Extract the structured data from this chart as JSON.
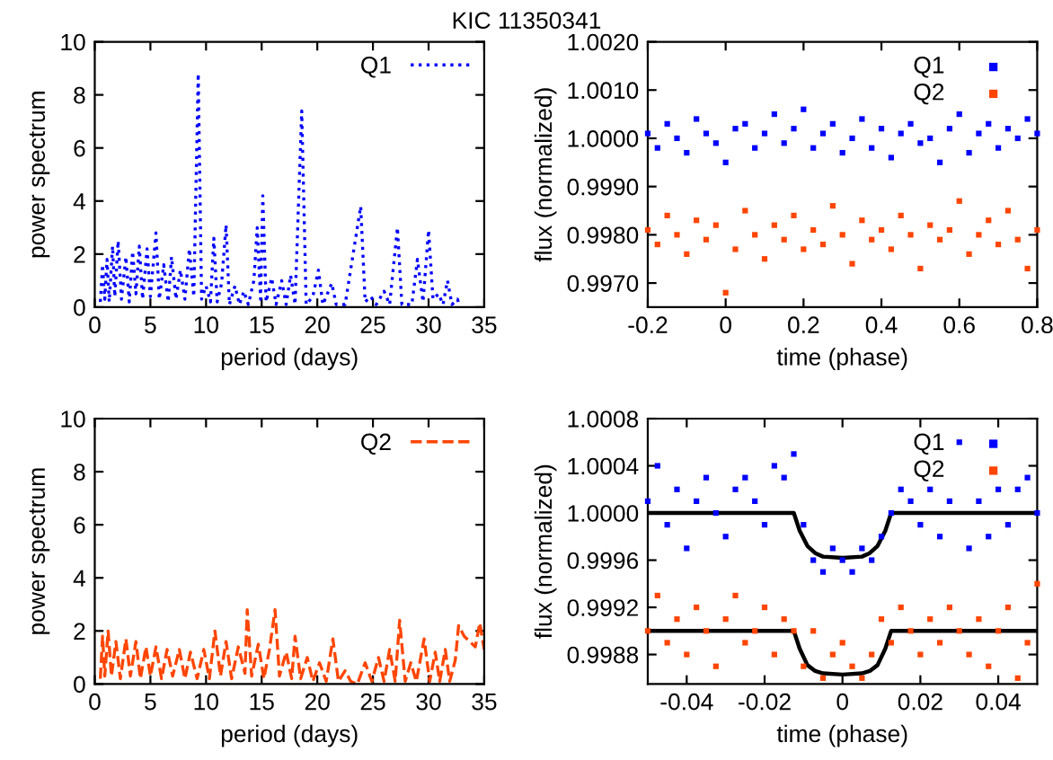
{
  "chart_data": [
    {
      "type": "line",
      "title": "KIC 11350341",
      "xlabel": "period (days)",
      "ylabel": "power spectrum",
      "xlim": [
        0,
        35
      ],
      "ylim": [
        0,
        10
      ],
      "xticks": [
        0,
        5,
        10,
        15,
        20,
        25,
        30,
        35
      ],
      "yticks": [
        0,
        2,
        4,
        6,
        8,
        10
      ],
      "legend": "top right",
      "line_style": "dotted",
      "grid": false,
      "series": [
        {
          "name": "Q1",
          "color": "#0000ff",
          "x": [
            0.5,
            0.7,
            0.9,
            1.1,
            1.3,
            1.6,
            1.8,
            2.1,
            2.4,
            2.8,
            3.1,
            3.4,
            3.7,
            4.0,
            4.3,
            4.7,
            5.0,
            5.5,
            5.8,
            6.2,
            6.6,
            6.9,
            7.3,
            7.7,
            8.1,
            8.5,
            8.9,
            9.3,
            9.6,
            10.0,
            10.4,
            10.7,
            11.0,
            11.4,
            11.8,
            12.1,
            12.6,
            13.0,
            13.4,
            13.8,
            14.3,
            14.6,
            14.9,
            15.1,
            15.4,
            15.9,
            16.3,
            16.8,
            17.2,
            17.6,
            18.0,
            18.6,
            19.0,
            19.6,
            20.1,
            20.5,
            21.3,
            21.7,
            22.5,
            23.9,
            24.3,
            24.8,
            25.3,
            26.0,
            26.5,
            27.2,
            27.6,
            28.5,
            29.0,
            29.5,
            30.0,
            30.4,
            30.9,
            31.3,
            31.7,
            32.1,
            32.6,
            32.8
          ],
          "values": [
            0.2,
            1.6,
            0.3,
            1.8,
            0.2,
            2.3,
            0.4,
            2.5,
            0.3,
            1.9,
            0.2,
            2.1,
            0.5,
            2.3,
            0.3,
            2.2,
            0.4,
            2.8,
            0.3,
            1.6,
            0.2,
            1.9,
            0.3,
            1.4,
            0.3,
            2.2,
            0.4,
            8.8,
            0.3,
            0.8,
            0.2,
            2.6,
            0.2,
            0.9,
            3.1,
            0.1,
            0.8,
            0.1,
            0.6,
            0.1,
            1.0,
            3.0,
            0.3,
            4.2,
            0.2,
            1.1,
            0.1,
            1.0,
            0.1,
            1.2,
            0.1,
            7.4,
            0.1,
            0.4,
            1.4,
            0.1,
            0.9,
            0.1,
            0.1,
            3.8,
            0.2,
            0.4,
            0.1,
            0.6,
            0.1,
            3.0,
            0.1,
            0.1,
            1.8,
            0.2,
            2.9,
            0.3,
            0.5,
            0.1,
            1.0,
            0.1,
            0.3,
            0
          ]
        }
      ]
    },
    {
      "type": "scatter",
      "xlabel": "time (phase)",
      "ylabel": "flux (normalized)",
      "xlim": [
        -0.2,
        0.8
      ],
      "ylim": [
        0.9965,
        1.002
      ],
      "xticks": [
        -0.2,
        0,
        0.2,
        0.4,
        0.6,
        0.8
      ],
      "yticks": [
        {
          "value": 0.997,
          "label": "0.9970"
        },
        {
          "value": 0.998,
          "label": "0.9980"
        },
        {
          "value": 0.999,
          "label": "0.9990"
        },
        {
          "value": 1.0,
          "label": "1.0000"
        },
        {
          "value": 1.001,
          "label": "1.0010"
        },
        {
          "value": 1.002,
          "label": "1.0020"
        }
      ],
      "legend": "top right",
      "marker": "square",
      "grid": false,
      "series": [
        {
          "name": "Q1",
          "color": "#0000ff",
          "x": [
            -0.2,
            -0.175,
            -0.15,
            -0.125,
            -0.1,
            -0.075,
            -0.05,
            -0.025,
            0,
            0.025,
            0.05,
            0.075,
            0.1,
            0.125,
            0.15,
            0.175,
            0.2,
            0.225,
            0.25,
            0.275,
            0.3,
            0.325,
            0.35,
            0.375,
            0.4,
            0.425,
            0.45,
            0.475,
            0.5,
            0.525,
            0.55,
            0.575,
            0.6,
            0.625,
            0.65,
            0.675,
            0.7,
            0.725,
            0.75,
            0.775,
            0.8
          ],
          "values": [
            1.0001,
            0.9998,
            1.0003,
            1.0,
            0.9997,
            1.0004,
            1.0001,
            0.9999,
            0.9995,
            1.0002,
            1.0003,
            0.9998,
            1.0001,
            1.0005,
            0.9999,
            1.0002,
            1.0006,
            0.9998,
            1.0001,
            1.0003,
            0.9997,
            1.0,
            1.0004,
            0.9998,
            1.0002,
            0.9996,
            1.0001,
            1.0003,
            0.9999,
            1.0,
            0.9995,
            1.0002,
            1.0005,
            0.9997,
            1.0001,
            1.0003,
            0.9998,
            1.0002,
            1.0,
            1.0004,
            1.0001
          ]
        },
        {
          "name": "Q2",
          "color": "#ff4500",
          "x": [
            -0.2,
            -0.175,
            -0.15,
            -0.125,
            -0.1,
            -0.075,
            -0.05,
            -0.025,
            0,
            0.025,
            0.05,
            0.075,
            0.1,
            0.125,
            0.15,
            0.175,
            0.2,
            0.225,
            0.25,
            0.275,
            0.3,
            0.325,
            0.35,
            0.375,
            0.4,
            0.425,
            0.45,
            0.475,
            0.5,
            0.525,
            0.55,
            0.575,
            0.6,
            0.625,
            0.65,
            0.675,
            0.7,
            0.725,
            0.75,
            0.775,
            0.8
          ],
          "values": [
            0.9981,
            0.9978,
            0.9984,
            0.998,
            0.9976,
            0.9983,
            0.9979,
            0.9982,
            0.9968,
            0.9977,
            0.9985,
            0.998,
            0.9975,
            0.9982,
            0.9979,
            0.9984,
            0.9977,
            0.9981,
            0.9978,
            0.9986,
            0.998,
            0.9974,
            0.9983,
            0.9979,
            0.9981,
            0.9977,
            0.9984,
            0.998,
            0.9973,
            0.9982,
            0.9979,
            0.9981,
            0.9987,
            0.9976,
            0.998,
            0.9983,
            0.9978,
            0.9985,
            0.9979,
            0.9973,
            0.9981
          ]
        }
      ]
    },
    {
      "type": "line",
      "xlabel": "period (days)",
      "ylabel": "power spectrum",
      "xlim": [
        0,
        35
      ],
      "ylim": [
        0,
        10
      ],
      "xticks": [
        0,
        5,
        10,
        15,
        20,
        25,
        30,
        35
      ],
      "yticks": [
        0,
        2,
        4,
        6,
        8,
        10
      ],
      "legend": "top right",
      "line_style": "dashed",
      "grid": false,
      "series": [
        {
          "name": "Q2",
          "color": "#ff4500",
          "x": [
            0.5,
            0.7,
            0.9,
            1.2,
            1.5,
            1.9,
            2.3,
            2.8,
            3.2,
            3.7,
            4.1,
            4.6,
            5.0,
            5.5,
            6.0,
            6.5,
            7.0,
            7.6,
            8.1,
            8.6,
            9.2,
            9.8,
            10.3,
            10.8,
            11.3,
            11.8,
            12.3,
            12.9,
            13.5,
            13.7,
            14.1,
            14.7,
            15.2,
            15.7,
            16.2,
            16.6,
            17.2,
            17.7,
            18.0,
            18.5,
            19.1,
            19.6,
            20.2,
            20.8,
            21.4,
            21.9,
            22.5,
            23.0,
            23.6,
            24.3,
            24.9,
            25.5,
            26.0,
            26.5,
            27.0,
            27.4,
            27.9,
            28.4,
            28.9,
            29.6,
            30.1,
            30.6,
            31.0,
            31.5,
            31.9,
            32.4,
            32.7,
            33.2,
            33.7,
            34.2,
            34.6,
            35.0
          ],
          "values": [
            0.2,
            1.8,
            0.3,
            2.0,
            0.3,
            1.6,
            0.2,
            1.7,
            0.3,
            1.6,
            0.2,
            1.4,
            0.3,
            1.4,
            0.2,
            1.3,
            0.3,
            1.3,
            0.2,
            1.2,
            0.2,
            1.3,
            0.2,
            2.0,
            0.3,
            1.6,
            0.2,
            1.4,
            0.4,
            2.8,
            0.3,
            1.5,
            0.2,
            1.3,
            2.8,
            0.3,
            1.2,
            0.2,
            1.8,
            0.2,
            1.0,
            0.1,
            0.8,
            0.1,
            1.7,
            0.1,
            0.5,
            0.1,
            0,
            0.8,
            0.1,
            1.0,
            0.1,
            1.3,
            0.1,
            2.4,
            0.1,
            0.8,
            0.1,
            1.7,
            0.1,
            1.2,
            0.1,
            1.3,
            0.1,
            0.9,
            2.2,
            1.8,
            1.6,
            1.4,
            2.3,
            1.3
          ]
        }
      ]
    },
    {
      "type": "scatter",
      "xlabel": "time (phase)",
      "ylabel": "flux (normalized)",
      "xlim": [
        -0.05,
        0.05
      ],
      "ylim": [
        0.99855,
        1.0008
      ],
      "xticks": [
        -0.04,
        -0.02,
        0,
        0.02,
        0.04
      ],
      "yticks": [
        {
          "value": 0.9988,
          "label": "0.9988"
        },
        {
          "value": 0.9992,
          "label": "0.9992"
        },
        {
          "value": 0.9996,
          "label": "0.9996"
        },
        {
          "value": 1.0,
          "label": "1.0000"
        },
        {
          "value": 1.0004,
          "label": "1.0004"
        },
        {
          "value": 1.0008,
          "label": "1.0008"
        }
      ],
      "legend": "top right",
      "marker": "square",
      "grid": false,
      "series": [
        {
          "name": "Q1",
          "color": "#0000ff",
          "x": [
            -0.05,
            -0.0475,
            -0.045,
            -0.0425,
            -0.04,
            -0.0375,
            -0.035,
            -0.0325,
            -0.03,
            -0.0275,
            -0.025,
            -0.0225,
            -0.02,
            -0.0175,
            -0.015,
            -0.0125,
            -0.01,
            -0.0075,
            -0.005,
            -0.0025,
            0,
            0.0025,
            0.005,
            0.0075,
            0.01,
            0.0125,
            0.015,
            0.0175,
            0.02,
            0.0225,
            0.025,
            0.0275,
            0.03,
            0.0325,
            0.035,
            0.0375,
            0.04,
            0.0425,
            0.045,
            0.0475,
            0.05
          ],
          "values": [
            1.0001,
            1.0004,
            0.9999,
            1.0002,
            0.9997,
            1.0001,
            1.0003,
            1.0,
            0.9998,
            1.0002,
            1.0003,
            1.0001,
            0.9999,
            1.0004,
            1.0003,
            1.0005,
            0.9999,
            0.9996,
            0.9995,
            0.9997,
            0.9996,
            0.9995,
            0.9997,
            0.9996,
            0.9998,
            1.0,
            1.0002,
            1.0001,
            0.9999,
            1.0002,
            0.9998,
            1.0001,
            1.0006,
            0.9997,
            1.0001,
            0.9998,
            1.0002,
            0.9999,
            1.0002,
            1.0003,
            1.0
          ]
        },
        {
          "name": "Q2",
          "color": "#ff4500",
          "x": [
            -0.05,
            -0.0475,
            -0.045,
            -0.0425,
            -0.04,
            -0.0375,
            -0.035,
            -0.0325,
            -0.03,
            -0.0275,
            -0.025,
            -0.0225,
            -0.02,
            -0.0175,
            -0.015,
            -0.0125,
            -0.01,
            -0.0075,
            -0.005,
            -0.0025,
            0,
            0.0025,
            0.005,
            0.0075,
            0.01,
            0.0125,
            0.015,
            0.0175,
            0.02,
            0.0225,
            0.025,
            0.0275,
            0.03,
            0.0325,
            0.035,
            0.0375,
            0.04,
            0.0425,
            0.045,
            0.0475,
            0.05
          ],
          "values": [
            0.999,
            0.9993,
            0.9989,
            0.9991,
            0.9988,
            0.9992,
            0.999,
            0.9987,
            0.9991,
            0.9993,
            0.9989,
            0.999,
            0.9992,
            0.9988,
            0.9991,
            0.999,
            0.9987,
            0.999,
            0.9986,
            0.9988,
            0.9989,
            0.9987,
            0.9986,
            0.9988,
            0.9991,
            0.9989,
            0.9992,
            0.999,
            0.9988,
            0.9991,
            0.9989,
            0.9992,
            0.999,
            0.9988,
            0.9991,
            0.9987,
            0.999,
            0.9992,
            0.9986,
            0.9989,
            0.9994
          ]
        },
        {
          "type": "line",
          "marker": "none",
          "color": "#000000",
          "x": [
            -0.05,
            -0.0125,
            -0.011,
            -0.009,
            -0.007,
            -0.005,
            0,
            0.005,
            0.007,
            0.009,
            0.011,
            0.0125,
            0.05
          ],
          "values": [
            1.0,
            1.0,
            0.99985,
            0.99972,
            0.99966,
            0.99963,
            0.99962,
            0.99963,
            0.99966,
            0.99972,
            0.99985,
            1.0,
            1.0
          ]
        },
        {
          "type": "line",
          "marker": "none",
          "color": "#000000",
          "x": [
            -0.05,
            -0.0125,
            -0.011,
            -0.009,
            -0.007,
            -0.005,
            0,
            0.005,
            0.007,
            0.009,
            0.011,
            0.0125,
            0.05
          ],
          "values": [
            0.999,
            0.999,
            0.99885,
            0.99871,
            0.99866,
            0.99864,
            0.99863,
            0.99864,
            0.99866,
            0.99871,
            0.99885,
            0.999,
            0.999
          ]
        }
      ]
    }
  ]
}
